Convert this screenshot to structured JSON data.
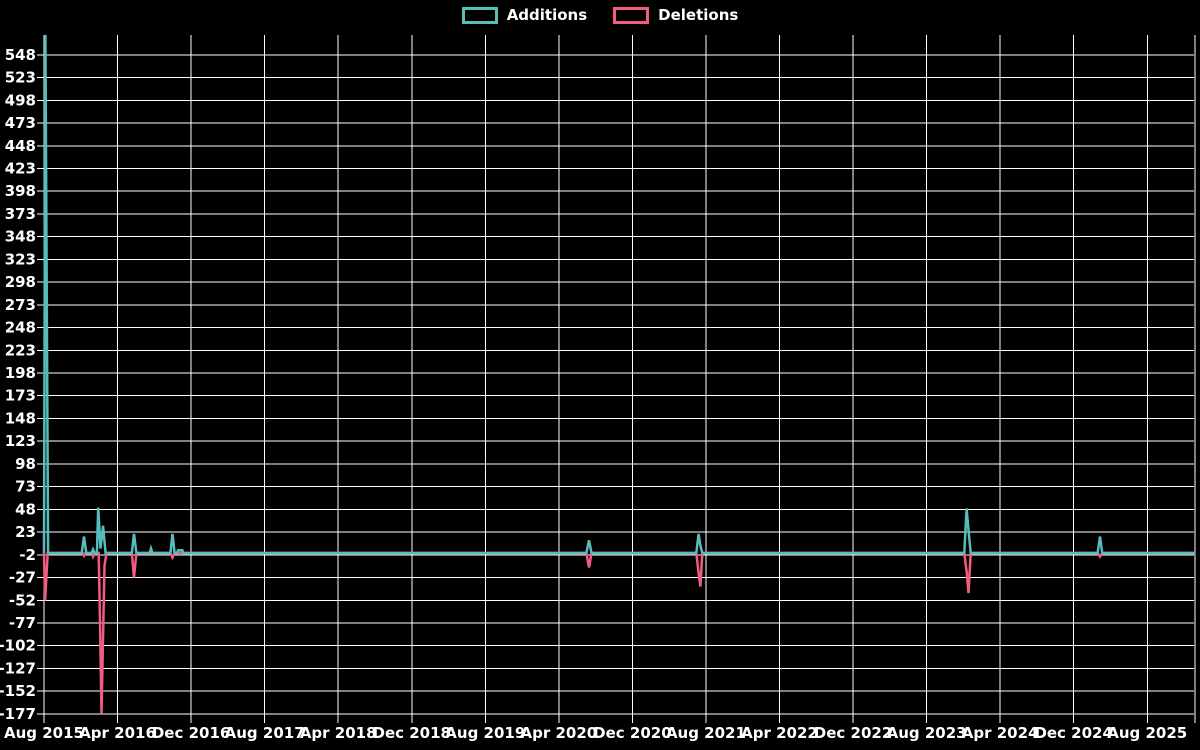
{
  "legend": {
    "additions_label": "Additions",
    "deletions_label": "Deletions"
  },
  "colors": {
    "background": "#000000",
    "grid": "#ffffff",
    "text": "#ffffff",
    "additions": "#57bdbb",
    "deletions": "#f25c80"
  },
  "chart_data": {
    "type": "line",
    "title": "",
    "xlabel": "",
    "ylabel": "",
    "legend_position": "top-center",
    "grid": true,
    "x_tick_labels": [
      "Aug 2015",
      "Apr 2016",
      "Dec 2016",
      "Aug 2017",
      "Apr 2018",
      "Dec 2018",
      "Aug 2019",
      "Apr 2020",
      "Dec 2020",
      "Aug 2021",
      "Apr 2022",
      "Dec 2022",
      "Aug 2023",
      "Apr 2024",
      "Dec 2024",
      "Aug 2025"
    ],
    "x_tick_interval_months": 8,
    "y_tick_values": [
      548,
      523,
      498,
      473,
      448,
      423,
      398,
      373,
      348,
      323,
      298,
      273,
      248,
      223,
      198,
      173,
      148,
      123,
      98,
      73,
      48,
      23,
      -2,
      -27,
      -52,
      -77,
      -102,
      -127,
      -152,
      -177
    ],
    "ylim": [
      -177,
      573
    ],
    "x_unit": "months_since_aug_2015",
    "x_range_months": [
      0,
      125.2
    ],
    "series": [
      {
        "name": "Additions",
        "color": "#57bdbb",
        "points": [
          [
            0,
            0
          ],
          [
            0.15,
            570
          ],
          [
            0.45,
            0
          ],
          [
            4.1,
            0
          ],
          [
            4.35,
            18
          ],
          [
            4.6,
            0
          ],
          [
            5.2,
            0
          ],
          [
            5.33,
            4
          ],
          [
            5.5,
            0
          ],
          [
            5.75,
            0
          ],
          [
            5.9,
            50
          ],
          [
            6.15,
            5
          ],
          [
            6.42,
            30
          ],
          [
            6.7,
            0
          ],
          [
            9.55,
            0
          ],
          [
            9.79,
            21
          ],
          [
            10.05,
            0
          ],
          [
            11.5,
            0
          ],
          [
            11.64,
            5
          ],
          [
            11.8,
            0
          ],
          [
            13.75,
            0
          ],
          [
            13.98,
            21
          ],
          [
            14.2,
            0
          ],
          [
            14.45,
            0
          ],
          [
            14.6,
            3
          ],
          [
            15.05,
            3
          ],
          [
            15.15,
            0
          ],
          [
            59.0,
            0
          ],
          [
            59.28,
            14
          ],
          [
            59.55,
            0
          ],
          [
            70.95,
            0
          ],
          [
            71.2,
            21
          ],
          [
            71.4,
            8
          ],
          [
            71.6,
            0
          ],
          [
            100.1,
            0
          ],
          [
            100.35,
            49
          ],
          [
            100.56,
            25
          ],
          [
            100.8,
            0
          ],
          [
            114.6,
            0
          ],
          [
            114.86,
            18
          ],
          [
            115.1,
            0
          ],
          [
            125.2,
            0
          ]
        ]
      },
      {
        "name": "Deletions",
        "color": "#f25c80",
        "points": [
          [
            0,
            0
          ],
          [
            0.12,
            -52
          ],
          [
            0.4,
            0
          ],
          [
            4.2,
            0
          ],
          [
            4.35,
            -3
          ],
          [
            4.5,
            0
          ],
          [
            5.2,
            0
          ],
          [
            5.33,
            -4
          ],
          [
            5.5,
            0
          ],
          [
            5.95,
            0
          ],
          [
            6.09,
            -75
          ],
          [
            6.25,
            -177
          ],
          [
            6.58,
            -14
          ],
          [
            6.8,
            0
          ],
          [
            9.55,
            0
          ],
          [
            9.79,
            -27
          ],
          [
            10.05,
            0
          ],
          [
            13.75,
            0
          ],
          [
            13.98,
            -5
          ],
          [
            14.2,
            0
          ],
          [
            59.0,
            0
          ],
          [
            59.28,
            -16
          ],
          [
            59.55,
            0
          ],
          [
            70.95,
            0
          ],
          [
            71.2,
            -22
          ],
          [
            71.4,
            -37
          ],
          [
            71.6,
            0
          ],
          [
            100.1,
            0
          ],
          [
            100.35,
            -20
          ],
          [
            100.56,
            -44
          ],
          [
            100.8,
            0
          ],
          [
            114.6,
            0
          ],
          [
            114.86,
            -4
          ],
          [
            115.1,
            0
          ],
          [
            125.2,
            0
          ]
        ]
      }
    ]
  }
}
